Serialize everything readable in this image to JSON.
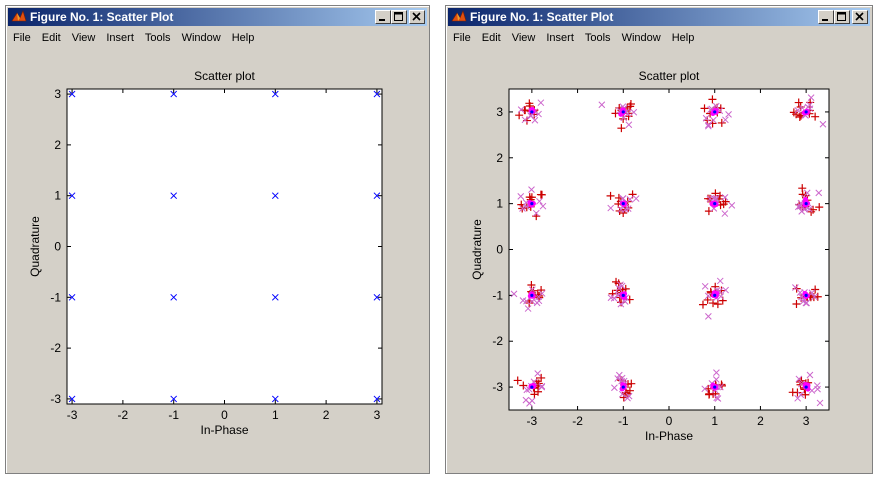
{
  "windows": [
    {
      "id": "win1",
      "title": "Figure No. 1: Scatter Plot",
      "menu": [
        "File",
        "Edit",
        "View",
        "Insert",
        "Tools",
        "Window",
        "Help"
      ],
      "chart_data": {
        "type": "scatter",
        "title": "Scatter plot",
        "xlabel": "In-Phase",
        "ylabel": "Quadrature",
        "xlim": [
          -3.1,
          3.1
        ],
        "ylim": [
          -3.1,
          3.1
        ],
        "xticks": [
          -3,
          -2,
          -1,
          0,
          1,
          2,
          3
        ],
        "yticks": [
          -3,
          -2,
          -1,
          0,
          1,
          2,
          3
        ],
        "series": [
          {
            "marker": "x",
            "color": "#0000ff",
            "points": [
              [
                -3,
                3
              ],
              [
                -1,
                3
              ],
              [
                1,
                3
              ],
              [
                3,
                3
              ],
              [
                -3,
                1
              ],
              [
                -1,
                1
              ],
              [
                1,
                1
              ],
              [
                3,
                1
              ],
              [
                -3,
                -1
              ],
              [
                -1,
                -1
              ],
              [
                1,
                -1
              ],
              [
                3,
                -1
              ],
              [
                -3,
                -3
              ],
              [
                -1,
                -3
              ],
              [
                1,
                -3
              ],
              [
                3,
                -3
              ]
            ]
          }
        ]
      }
    },
    {
      "id": "win2",
      "title": "Figure No. 1: Scatter Plot",
      "menu": [
        "File",
        "Edit",
        "View",
        "Insert",
        "Tools",
        "Window",
        "Help"
      ],
      "chart_data": {
        "type": "scatter",
        "title": "Scatter plot",
        "xlabel": "In-Phase",
        "ylabel": "Quadrature",
        "xlim": [
          -3.5,
          3.5
        ],
        "ylim": [
          -3.5,
          3.5
        ],
        "xticks": [
          -3,
          -2,
          -1,
          0,
          1,
          2,
          3
        ],
        "yticks": [
          -3,
          -2,
          -1,
          0,
          1,
          2,
          3
        ],
        "constellation": [
          [
            -3,
            3
          ],
          [
            -1,
            3
          ],
          [
            1,
            3
          ],
          [
            3,
            3
          ],
          [
            -3,
            1
          ],
          [
            -1,
            1
          ],
          [
            1,
            1
          ],
          [
            3,
            1
          ],
          [
            -3,
            -1
          ],
          [
            -1,
            -1
          ],
          [
            1,
            -1
          ],
          [
            3,
            -1
          ],
          [
            -3,
            -3
          ],
          [
            -1,
            -3
          ],
          [
            1,
            -3
          ],
          [
            3,
            -3
          ]
        ],
        "series": [
          {
            "marker": "+",
            "color": "#cc0000",
            "spread": 0.3
          },
          {
            "marker": "x",
            "color": "#cc66cc",
            "spread": 0.3
          },
          {
            "marker": "o",
            "color": "#ff00ff",
            "spread": 0.06
          },
          {
            "marker": "*",
            "color": "#0000ff",
            "spread": 0.0
          }
        ]
      }
    }
  ]
}
